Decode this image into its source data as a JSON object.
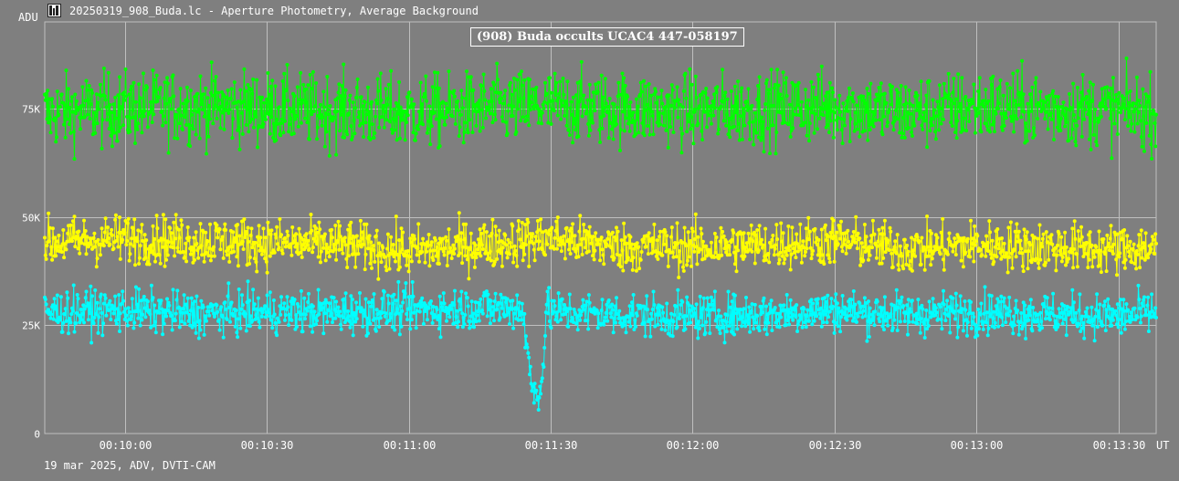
{
  "window": {
    "title": "20250319_908_Buda.lc - Aperture Photometry, Average Background",
    "icon": "lightcurve-app-icon"
  },
  "footer": {
    "text": "19 mar 2025, ADV, DVTI-CAM"
  },
  "chart_data": {
    "type": "line",
    "title": "(908) Buda occults UCAC4 447-058197",
    "ylabel": "ADU",
    "xlabel": "UT",
    "ylim": [
      0,
      95000
    ],
    "xlim": [
      "00:09:43",
      "00:13:38"
    ],
    "grid": true,
    "background_color": "#7f7f7f",
    "grid_color": "#bfbfbf",
    "y_ticks": [
      {
        "value": 0,
        "label": "0"
      },
      {
        "value": 25000,
        "label": "25K"
      },
      {
        "value": 50000,
        "label": "50K"
      },
      {
        "value": 75000,
        "label": "75K"
      }
    ],
    "x_ticks": [
      {
        "value": "00:10:00",
        "label": "00:10:00"
      },
      {
        "value": "00:10:30",
        "label": "00:10:30"
      },
      {
        "value": "00:11:00",
        "label": "00:11:00"
      },
      {
        "value": "00:11:30",
        "label": "00:11:30"
      },
      {
        "value": "00:12:00",
        "label": "00:12:00"
      },
      {
        "value": "00:12:30",
        "label": "00:12:30"
      },
      {
        "value": "00:13:00",
        "label": "00:13:00"
      },
      {
        "value": "00:13:30",
        "label": "00:13:30"
      }
    ],
    "series": [
      {
        "color": "#00ff00",
        "x": [
          "00:09:43",
          "00:10:00",
          "00:10:15",
          "00:10:30",
          "00:10:45",
          "00:11:00",
          "00:11:15",
          "00:11:30",
          "00:11:45",
          "00:12:00",
          "00:12:15",
          "00:12:30",
          "00:12:45",
          "00:13:00",
          "00:13:15",
          "00:13:30",
          "00:13:38"
        ],
        "values": [
          74000,
          75000,
          75500,
          75000,
          74500,
          74000,
          75000,
          75500,
          75000,
          74500,
          75000,
          75500,
          74000,
          75500,
          75000,
          74500,
          74000
        ],
        "scatter": 6000
      },
      {
        "color": "#ffff00",
        "x": [
          "00:09:43",
          "00:10:00",
          "00:10:15",
          "00:10:30",
          "00:10:45",
          "00:11:00",
          "00:11:15",
          "00:11:30",
          "00:11:45",
          "00:12:00",
          "00:12:15",
          "00:12:30",
          "00:12:45",
          "00:13:00",
          "00:13:15",
          "00:13:30",
          "00:13:38"
        ],
        "values": [
          44000,
          45000,
          44500,
          44000,
          43500,
          42000,
          43500,
          45000,
          43000,
          43000,
          43500,
          44500,
          42500,
          43500,
          43000,
          42500,
          43000
        ],
        "scatter": 4000
      },
      {
        "color": "#00ffff",
        "x": [
          "00:09:43",
          "00:10:00",
          "00:10:15",
          "00:10:30",
          "00:10:45",
          "00:11:00",
          "00:11:15",
          "00:11:24",
          "00:11:26",
          "00:11:27",
          "00:11:28",
          "00:11:29",
          "00:11:30",
          "00:11:45",
          "00:12:00",
          "00:12:15",
          "00:12:30",
          "00:12:45",
          "00:13:00",
          "00:13:15",
          "00:13:30",
          "00:13:38"
        ],
        "values": [
          28000,
          28500,
          27500,
          28000,
          28000,
          28500,
          29000,
          29000,
          10000,
          10500,
          10000,
          28000,
          28000,
          27500,
          27000,
          27500,
          28500,
          27500,
          28000,
          27500,
          27000,
          28000
        ],
        "scatter": 3500
      }
    ]
  }
}
